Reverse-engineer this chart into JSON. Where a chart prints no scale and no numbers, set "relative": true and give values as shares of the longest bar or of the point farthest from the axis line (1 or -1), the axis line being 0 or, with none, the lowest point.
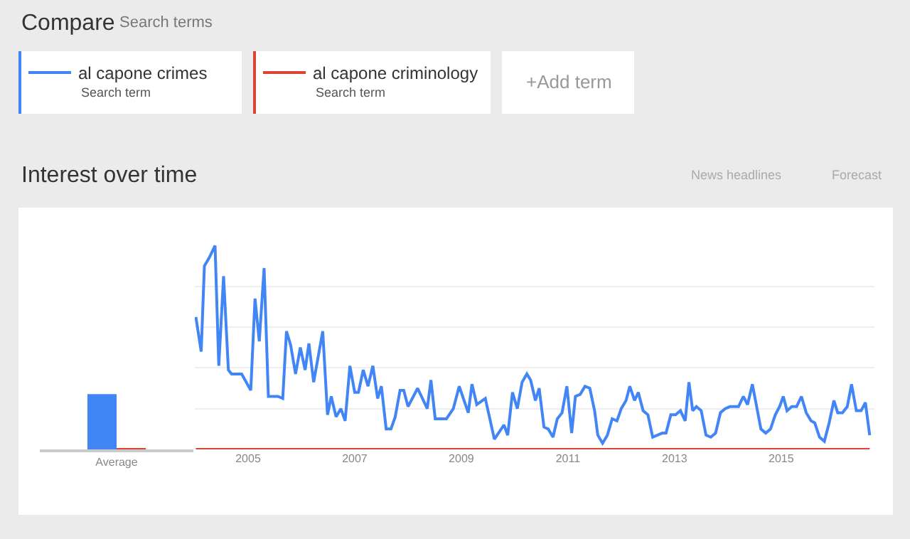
{
  "chart_data": [
    {
      "type": "other",
      "title": "Compare",
      "annotations": [
        "Search terms",
        "Search term",
        "Search term",
        "+Add term",
        "News headlines",
        "Forecast"
      ]
    },
    {
      "type": "bar",
      "categories": [
        "Average"
      ],
      "relative": true,
      "series": [
        {
          "color": "#4285f4",
          "values": [
            1
          ]
        },
        {
          "color": "#db4437",
          "values": [
            0.01
          ]
        }
      ]
    },
    {
      "type": "line",
      "title": "Interest over time",
      "relative": true,
      "grid": "y",
      "legend": "top left",
      "xlim": [
        2004,
        2016.75
      ],
      "xticks": [
        2005,
        2007,
        2009,
        2011,
        2013,
        2015
      ],
      "series": [
        {
          "name": "al capone crimes",
          "color": "#4285f4",
          "x": [
            2004.02,
            2004.12,
            2004.18,
            2004.27,
            2004.38,
            2004.45,
            2004.54,
            2004.63,
            2004.69,
            2004.88,
            2005.05,
            2005.13,
            2005.21,
            2005.3,
            2005.38,
            2005.56,
            2005.65,
            2005.72,
            2005.8,
            2005.89,
            2005.98,
            2006.07,
            2006.14,
            2006.23,
            2006.4,
            2006.49,
            2006.56,
            2006.65,
            2006.74,
            2006.82,
            2006.91,
            2007.0,
            2007.07,
            2007.16,
            2007.25,
            2007.34,
            2007.43,
            2007.5,
            2007.59,
            2007.68,
            2007.76,
            2007.85,
            2007.92,
            2008.0,
            2008.18,
            2008.36,
            2008.43,
            2008.51,
            2008.72,
            2008.85,
            2008.96,
            2009.13,
            2009.2,
            2009.29,
            2009.45,
            2009.62,
            2009.8,
            2009.87,
            2009.96,
            2010.05,
            2010.14,
            2010.23,
            2010.3,
            2010.39,
            2010.46,
            2010.55,
            2010.63,
            2010.72,
            2010.8,
            2010.89,
            2010.98,
            2011.07,
            2011.14,
            2011.23,
            2011.32,
            2011.41,
            2011.5,
            2011.56,
            2011.65,
            2011.74,
            2011.83,
            2011.92,
            2012.0,
            2012.09,
            2012.16,
            2012.25,
            2012.32,
            2012.41,
            2012.5,
            2012.59,
            2012.68,
            2012.77,
            2012.84,
            2012.93,
            2013.02,
            2013.11,
            2013.2,
            2013.27,
            2013.34,
            2013.41,
            2013.5,
            2013.59,
            2013.68,
            2013.77,
            2013.86,
            2013.95,
            2014.04,
            2014.2,
            2014.29,
            2014.37,
            2014.46,
            2014.62,
            2014.71,
            2014.8,
            2014.89,
            2014.97,
            2015.04,
            2015.11,
            2015.2,
            2015.29,
            2015.38,
            2015.47,
            2015.56,
            2015.63,
            2015.72,
            2015.81,
            2015.9,
            2015.99,
            2016.06,
            2016.15,
            2016.24,
            2016.32,
            2016.41,
            2016.5,
            2016.58,
            2016.66
          ],
          "values": [
            0.65,
            0.48,
            0.9,
            0.94,
            1.0,
            0.41,
            0.85,
            0.39,
            0.37,
            0.37,
            0.29,
            0.74,
            0.53,
            0.89,
            0.26,
            0.26,
            0.25,
            0.58,
            0.51,
            0.37,
            0.5,
            0.39,
            0.52,
            0.33,
            0.58,
            0.17,
            0.26,
            0.16,
            0.2,
            0.14,
            0.41,
            0.28,
            0.28,
            0.39,
            0.31,
            0.41,
            0.25,
            0.31,
            0.1,
            0.1,
            0.16,
            0.29,
            0.29,
            0.21,
            0.3,
            0.2,
            0.34,
            0.15,
            0.15,
            0.2,
            0.31,
            0.18,
            0.32,
            0.22,
            0.25,
            0.05,
            0.12,
            0.07,
            0.28,
            0.2,
            0.33,
            0.37,
            0.34,
            0.24,
            0.3,
            0.11,
            0.1,
            0.06,
            0.15,
            0.18,
            0.31,
            0.08,
            0.26,
            0.27,
            0.31,
            0.3,
            0.19,
            0.07,
            0.03,
            0.07,
            0.15,
            0.14,
            0.2,
            0.24,
            0.31,
            0.24,
            0.28,
            0.19,
            0.17,
            0.06,
            0.07,
            0.08,
            0.08,
            0.17,
            0.17,
            0.19,
            0.14,
            0.33,
            0.19,
            0.21,
            0.19,
            0.07,
            0.06,
            0.08,
            0.18,
            0.2,
            0.21,
            0.21,
            0.26,
            0.22,
            0.32,
            0.1,
            0.08,
            0.1,
            0.17,
            0.21,
            0.26,
            0.19,
            0.21,
            0.21,
            0.26,
            0.18,
            0.14,
            0.13,
            0.06,
            0.04,
            0.13,
            0.24,
            0.18,
            0.18,
            0.21,
            0.32,
            0.19,
            0.19,
            0.23,
            0.07
          ]
        },
        {
          "name": "al capone criminology",
          "color": "#db4437",
          "x": [
            2004.02,
            2016.66
          ],
          "values": [
            0,
            0
          ]
        }
      ]
    }
  ]
}
